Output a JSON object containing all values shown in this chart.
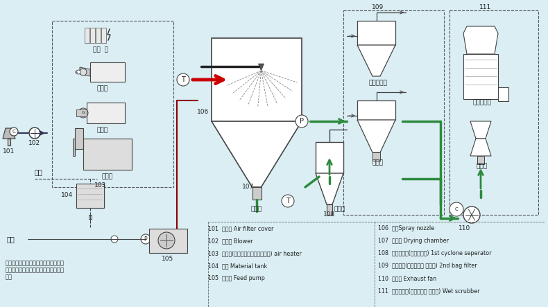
{
  "bg_color": "#daeef3",
  "title": "",
  "fig_width": 7.9,
  "fig_height": 4.43,
  "legend_items": [
    {
      "num": "101",
      "cn": "滤风罩",
      "en": "Air filter cover"
    },
    {
      "num": "102",
      "cn": "送风机",
      "en": "Blower"
    },
    {
      "num": "103",
      "cn": "加热器(电、蒸汽、燃油、气、煤)",
      "en": "air heater"
    },
    {
      "num": "104",
      "cn": "料槽",
      "en": "Material tank"
    },
    {
      "num": "105",
      "cn": "供料泵",
      "en": "Feed pump"
    },
    {
      "num": "106",
      "cn": "喷枪",
      "en": "Spray nozzle"
    },
    {
      "num": "107",
      "cn": "干燥塔",
      "en": "Drying chamber"
    },
    {
      "num": "108",
      "cn": "一级收尘器(旋风分离器)",
      "en": "1st cyclone seperator"
    },
    {
      "num": "109",
      "cn": "二级收尘(旋风分离器 袋滤器)",
      "en": "2nd bag filter"
    },
    {
      "num": "110",
      "cn": "引风机",
      "en": "Exhaust fan"
    },
    {
      "num": "111",
      "cn": "湿式除尘器(水沫除尘器 文丘里)",
      "en": "Wet scrubber"
    }
  ],
  "note": "注：用户可根据当地能源情况选定加热\n方式，根据物料情况选则收尘、除尘方\n式。",
  "line_color_hot": "#cc0000",
  "line_color_green": "#2d8a3e",
  "line_color_dark": "#333333",
  "line_color_black": "#1a1a1a"
}
